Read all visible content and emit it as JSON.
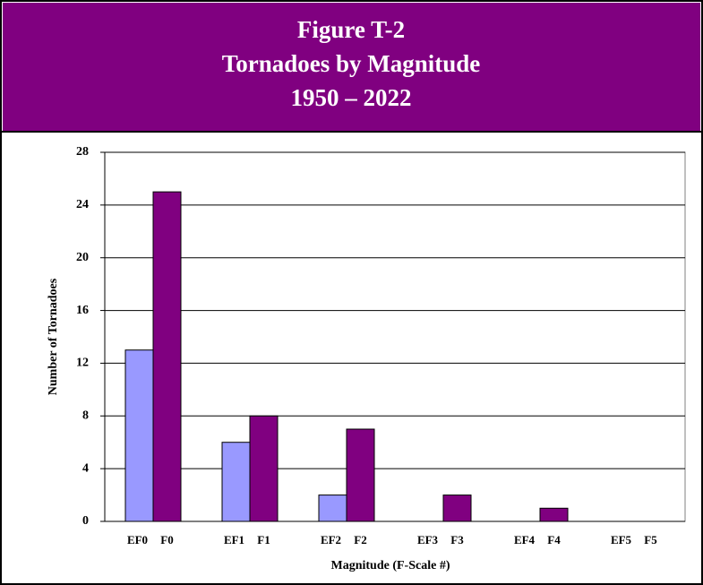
{
  "chart_data": {
    "type": "bar",
    "title_lines": [
      "Figure T-2",
      "Tornadoes by Magnitude",
      "1950 – 2022"
    ],
    "y_label": "Number of Tornadoes",
    "x_label": "Magnitude (F-Scale #)",
    "series": [
      {
        "color": "#9999ff",
        "labels": [
          "EF0",
          "EF1",
          "EF2",
          "EF3",
          "EF4",
          "EF5"
        ],
        "values": [
          13,
          6,
          2,
          0,
          0,
          0
        ]
      },
      {
        "color": "#800080",
        "labels": [
          "F0",
          "F1",
          "F2",
          "F3",
          "F4",
          "F5"
        ],
        "values": [
          25,
          8,
          7,
          2,
          1,
          0
        ]
      }
    ],
    "ylim": [
      0,
      28
    ],
    "yticks": [
      0,
      4,
      8,
      12,
      16,
      20,
      24,
      28
    ],
    "grid": true
  }
}
